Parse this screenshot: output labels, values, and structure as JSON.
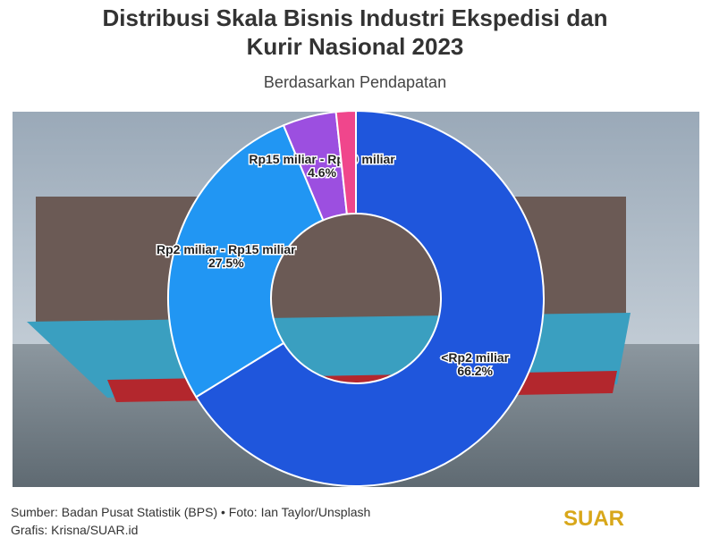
{
  "chart_data": {
    "type": "donut",
    "title": "Distribusi Skala Bisnis Industri Ekspedisi dan Kurir Nasional 2023",
    "subtitle": "Berdasarkan Pendapatan",
    "categories": [
      "<Rp2 miliar",
      "Rp2 miliar - Rp15 miliar",
      "Rp15 miliar - Rp50 miliar",
      null
    ],
    "values": [
      66.2,
      27.5,
      4.6,
      1.7
    ],
    "value_labels": [
      "66.2%",
      "27.5%",
      "4.6%",
      null
    ],
    "colors": [
      "#1f56dc",
      "#2196f3",
      "#9c4fe0",
      "#f0468c"
    ],
    "source": "Sumber: Badan Pusat Statistik (BPS) • Foto: Ian Taylor/Unsplash",
    "credit": "Grafis: Krisna/SUAR.id",
    "logo": "SUAR"
  }
}
